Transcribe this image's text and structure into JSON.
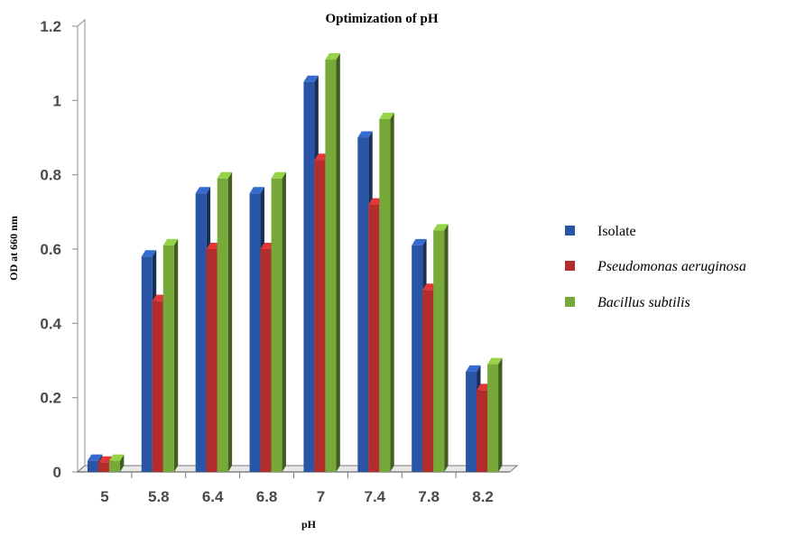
{
  "chart_data": {
    "type": "bar",
    "title": "Optimization of pH",
    "xlabel": "pH",
    "ylabel": "OD at 660 nm",
    "categories": [
      "5",
      "5.8",
      "6.4",
      "6.8",
      "7",
      "7.4",
      "7.8",
      "8.2"
    ],
    "ylim": [
      0,
      1.2
    ],
    "yticks": [
      "0",
      "0.2",
      "0.4",
      "0.6",
      "0.8",
      "1",
      "1.2"
    ],
    "grid": false,
    "legend_position": "right",
    "series": [
      {
        "name": "Isolate",
        "italic": false,
        "color": "#2a55a5",
        "values": [
          0.03,
          0.58,
          0.75,
          0.75,
          1.05,
          0.9,
          0.61,
          0.27
        ]
      },
      {
        "name": "Pseudomonas aeruginosa",
        "italic": true,
        "color": "#b32d2d",
        "values": [
          0.025,
          0.46,
          0.6,
          0.6,
          0.84,
          0.72,
          0.49,
          0.22
        ]
      },
      {
        "name": "Bacillus subtilis",
        "italic": true,
        "color": "#77a93a",
        "values": [
          0.03,
          0.61,
          0.79,
          0.79,
          1.11,
          0.95,
          0.65,
          0.29
        ]
      }
    ]
  }
}
